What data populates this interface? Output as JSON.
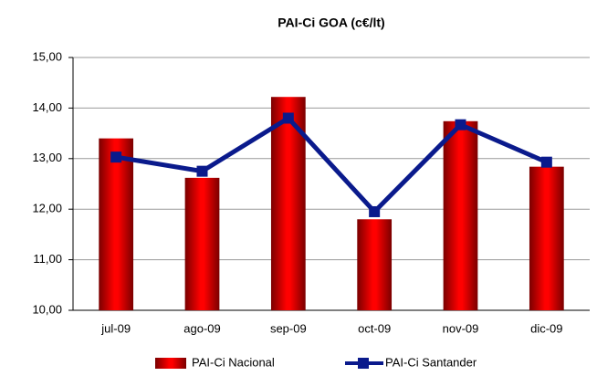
{
  "chart_data": {
    "type": "bar",
    "title": "PAI-Ci GOA (c€/lt)",
    "categories": [
      "jul-09",
      "ago-09",
      "sep-09",
      "oct-09",
      "nov-09",
      "dic-09"
    ],
    "series": [
      {
        "name": "PAI-Ci Nacional",
        "type": "bar",
        "color": "#ff0000",
        "values": [
          13.4,
          12.62,
          14.22,
          11.8,
          13.74,
          12.84
        ]
      },
      {
        "name": "PAI-Ci Santander",
        "type": "line",
        "color": "#0a1a8c",
        "values": [
          13.03,
          12.75,
          13.8,
          11.95,
          13.67,
          12.93
        ]
      }
    ],
    "ylim": [
      10,
      15
    ],
    "yticks": [
      {
        "value": 10,
        "label": "10,00"
      },
      {
        "value": 11,
        "label": "11,00"
      },
      {
        "value": 12,
        "label": "12,00"
      },
      {
        "value": 13,
        "label": "13,00"
      },
      {
        "value": 14,
        "label": "14,00"
      },
      {
        "value": 15,
        "label": "15,00"
      }
    ],
    "grid": true,
    "legend": "bottom"
  }
}
